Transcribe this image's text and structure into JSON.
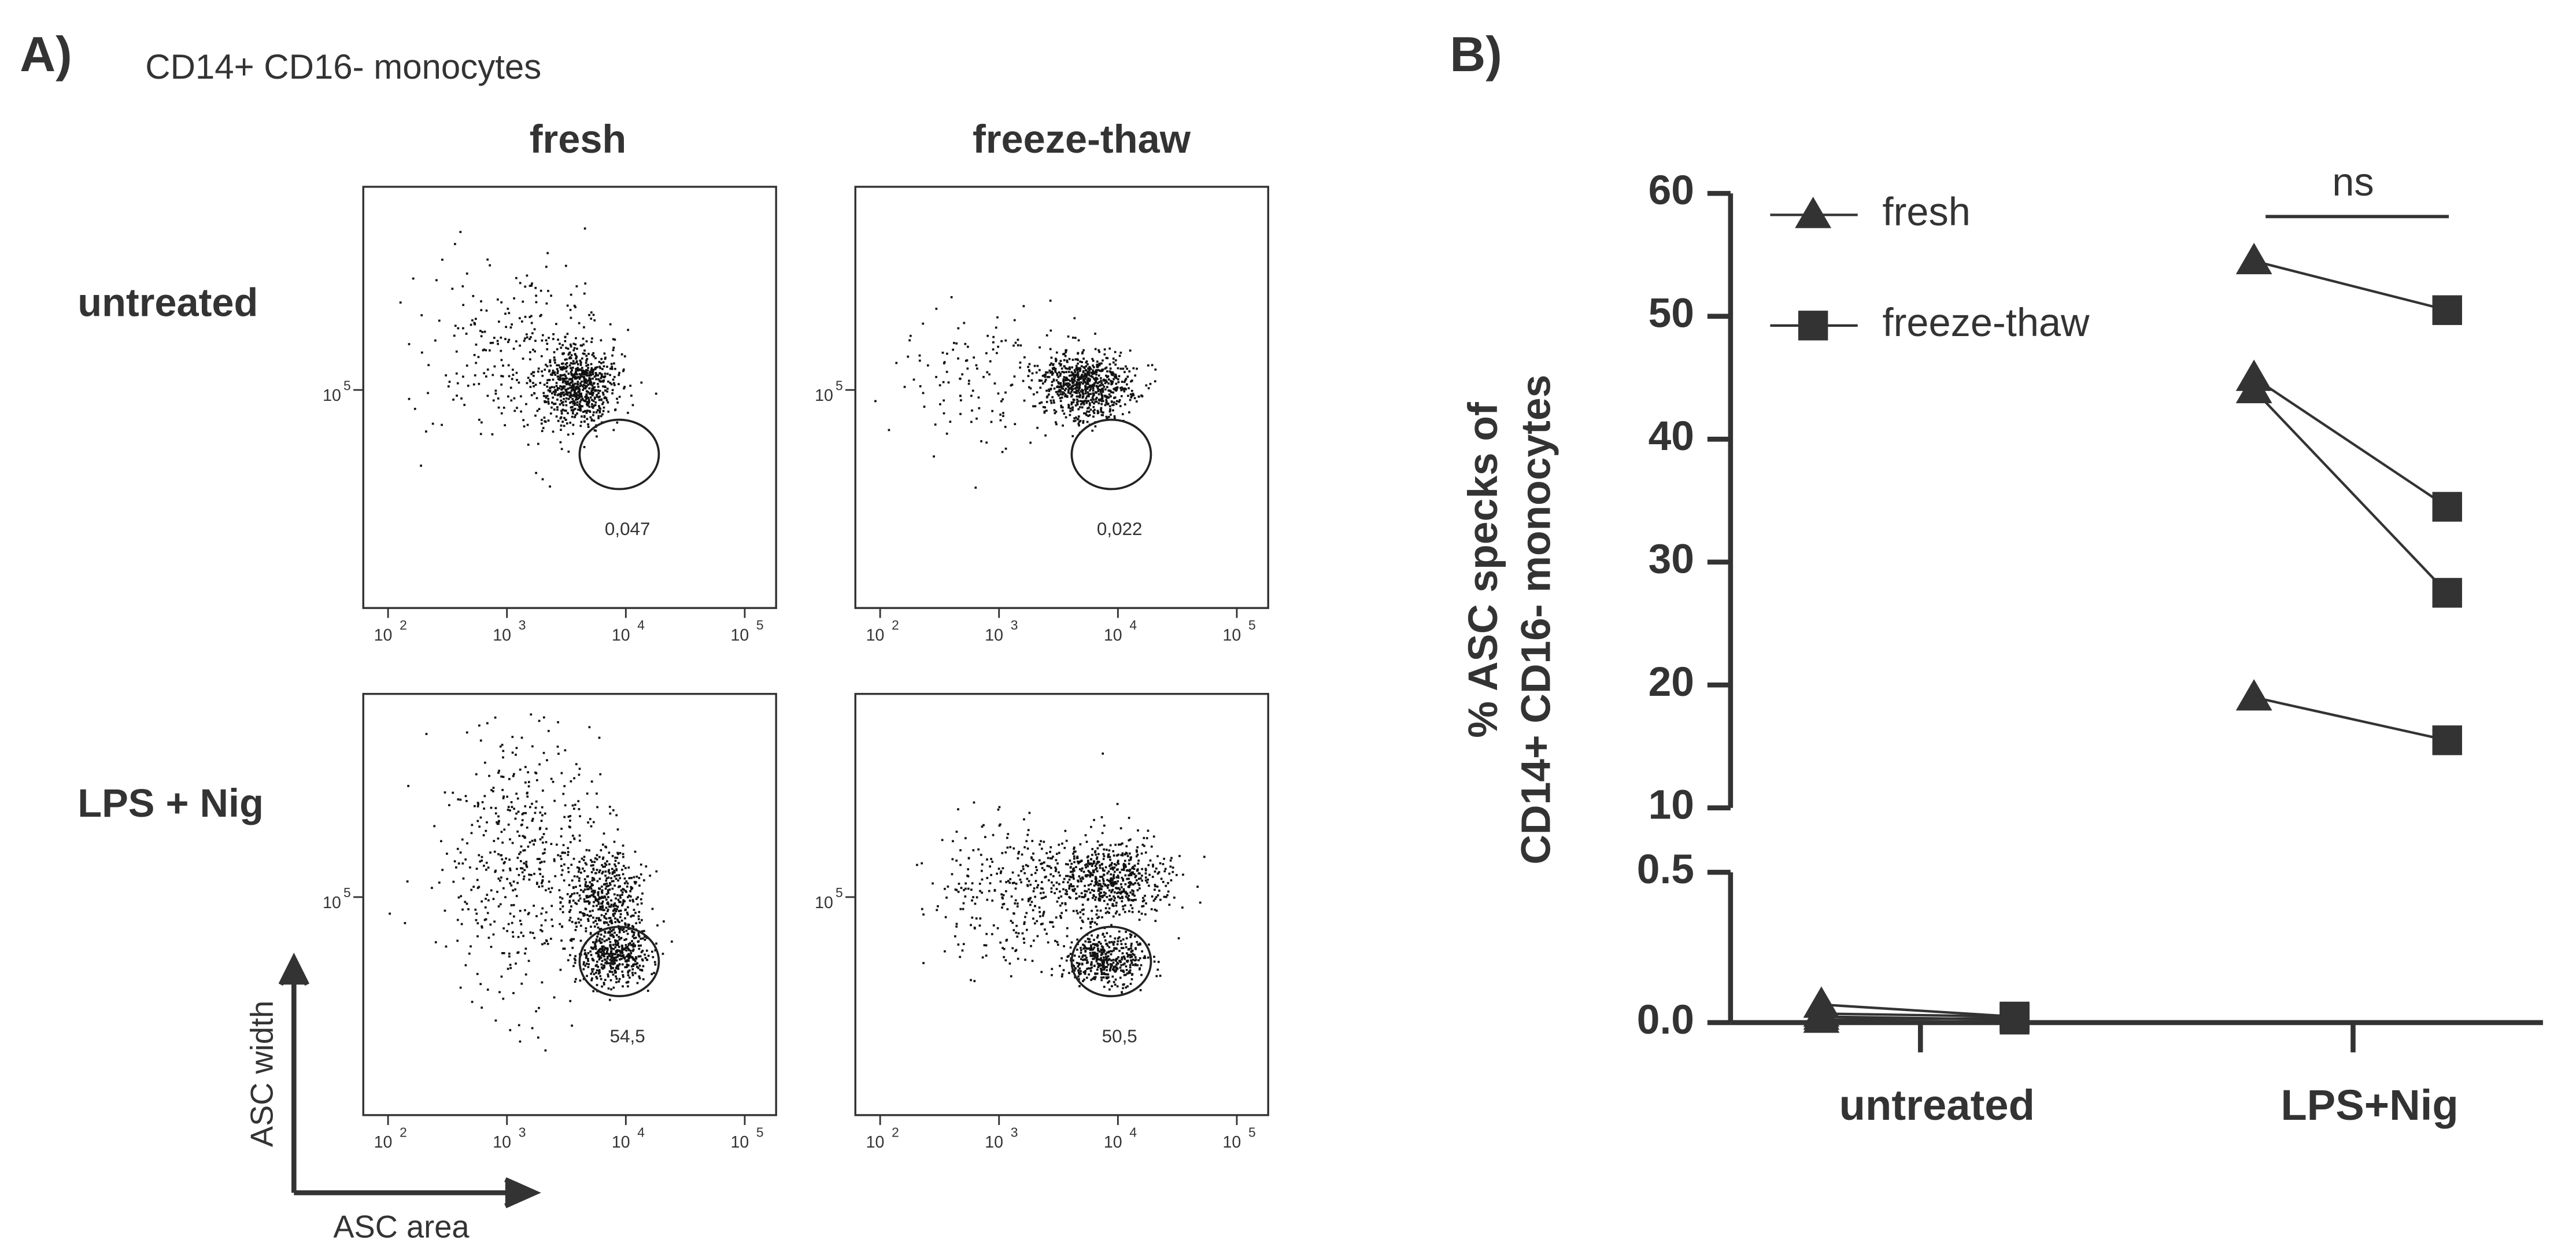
{
  "panel_a": {
    "label": "A)",
    "title": "CD14+ CD16- monocytes",
    "columns": [
      "fresh",
      "freeze-thaw"
    ],
    "rows": [
      "untreated",
      "LPS + Nig"
    ],
    "gate_labels": [
      "0,047",
      "0,022",
      "54,5",
      "50,5"
    ],
    "tick_base": "10",
    "x_tick_exponents": [
      "2",
      "3",
      "4",
      "5"
    ],
    "y_tick_exponent": "5",
    "y_axis_label": "ASC width",
    "x_axis_label": "ASC area"
  },
  "chart_data": {
    "type": "paired",
    "label": "B)",
    "y_label": [
      "% ASC specks of",
      "CD14+ CD16-  monocytes"
    ],
    "categories": [
      "untreated",
      "LPS+Nig"
    ],
    "series": [
      {
        "name": "fresh",
        "marker": "triangle",
        "color": "#333333",
        "values": [
          [
            0.06,
            0.03,
            0.02,
            0.01
          ],
          [
            54.5,
            45,
            44,
            19
          ]
        ]
      },
      {
        "name": "freeze-thaw",
        "marker": "square",
        "color": "#333333",
        "values": [
          [
            0.02,
            0.02,
            0.01,
            0.015
          ],
          [
            50.5,
            34.5,
            27.5,
            15.5
          ]
        ]
      }
    ],
    "ylim_lower": [
      0,
      0.5
    ],
    "yticks_lower": [
      {
        "value": 0,
        "label": "0.0"
      },
      0.5
    ],
    "ylim_upper": [
      10,
      60
    ],
    "yticks_upper": [
      10,
      20,
      30,
      40,
      50,
      60
    ],
    "annotation": "ns",
    "legend": "upper left"
  }
}
